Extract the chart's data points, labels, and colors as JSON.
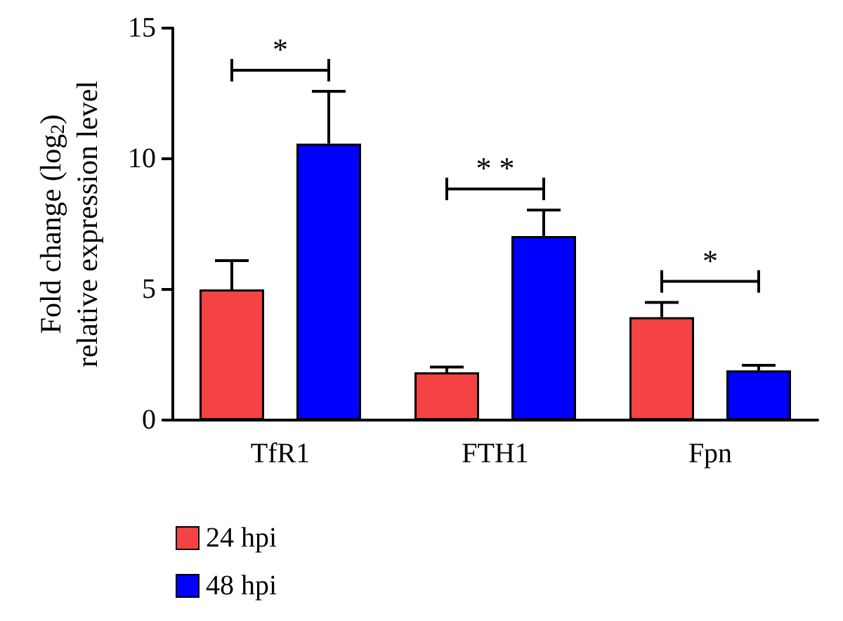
{
  "chart_data": {
    "type": "bar",
    "ylabel": "Fold change (log$_{2}$)\nrelative expression level",
    "categories": [
      "TfR1",
      "FTH1",
      "Fpn"
    ],
    "series": [
      {
        "name": "24 hpi",
        "color": "#f54242",
        "values": [
          5.0,
          1.83,
          3.94
        ],
        "errors": [
          1.1,
          0.2,
          0.56
        ]
      },
      {
        "name": "48 hpi",
        "color": "#0000ff",
        "values": [
          10.58,
          7.04,
          1.9
        ],
        "errors": [
          2.0,
          1.0,
          0.2
        ]
      }
    ],
    "ylim": [
      0,
      15
    ],
    "yticks": [
      0,
      5,
      10,
      15
    ],
    "grid": false,
    "legend": "bottom left",
    "annotations": [
      "*",
      "* *",
      "*"
    ]
  }
}
